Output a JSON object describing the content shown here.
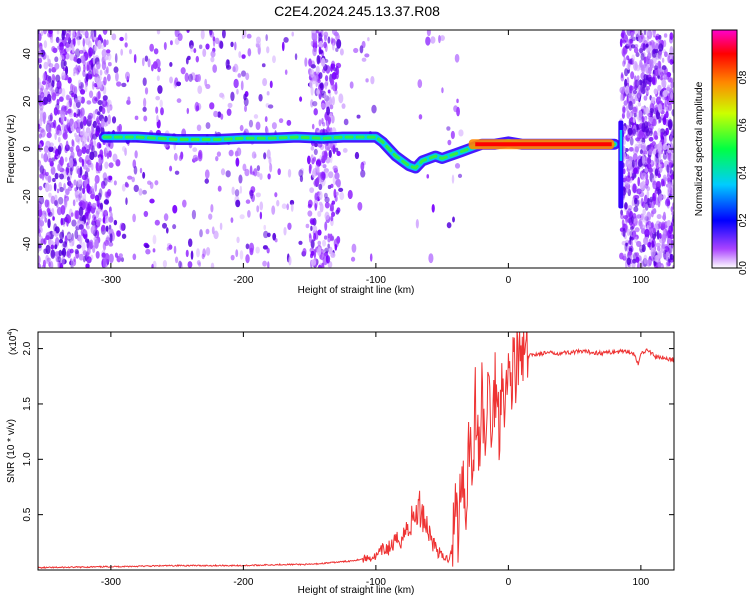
{
  "figure": {
    "title": "C2E4.2024.245.13.37.R08"
  },
  "chart_data": [
    {
      "type": "heatmap",
      "name": "spectrogram",
      "xlabel": "Height of straight line (km)",
      "ylabel": "Frequency (Hz)",
      "xlim": [
        -355,
        125
      ],
      "ylim": [
        -50,
        50
      ],
      "x_ticks": [
        -300,
        -200,
        -100,
        0,
        100
      ],
      "y_ticks": [
        -40,
        -20,
        0,
        20,
        40
      ],
      "x_tick_labels": [
        "-300",
        "-200",
        "-100",
        "0",
        "100"
      ],
      "y_tick_labels": [
        "-40",
        "-20",
        "0",
        "20",
        "40"
      ],
      "value_range": [
        0,
        1
      ],
      "ridge": {
        "x": [
          -305,
          -280,
          -250,
          -220,
          -200,
          -180,
          -160,
          -140,
          -125,
          -110,
          -100,
          -95,
          -90,
          -85,
          -80,
          -75,
          -70,
          -65,
          -60,
          -55,
          -50,
          -45,
          -40,
          -35,
          -30,
          -25,
          -20,
          -10,
          0,
          10,
          20,
          40,
          60,
          80
        ],
        "y": [
          5,
          5,
          4,
          4,
          4.5,
          4.5,
          5,
          4.5,
          5,
          5,
          5,
          3,
          0,
          -3,
          -5,
          -7,
          -8,
          -5,
          -4,
          -3,
          -4,
          -3,
          -2,
          -1,
          0,
          1,
          2,
          2,
          3,
          2,
          2,
          2,
          2,
          2
        ]
      },
      "colorbar": {
        "label": "Normalized spectral amplitude",
        "ticks": [
          0.0,
          0.2,
          0.4,
          0.6,
          0.8
        ],
        "tick_labels": [
          "0.0",
          "0.2",
          "0.4",
          "0.6",
          "0.8"
        ],
        "colors": [
          "#ffffff",
          "#8800ff",
          "#0000ff",
          "#00ffff",
          "#00ff00",
          "#ffff00",
          "#ff8800",
          "#ff0000",
          "#ff00ff"
        ]
      }
    },
    {
      "type": "line",
      "name": "snr",
      "xlabel": "Height of straight line (km)",
      "ylabel": "SNR (10 * v/v)",
      "y_multiplier_base": "(x10",
      "y_multiplier_exp": "4",
      "y_multiplier_close": ")",
      "xlim": [
        -355,
        125
      ],
      "ylim": [
        0,
        2.15
      ],
      "x_ticks": [
        -300,
        -200,
        -100,
        0,
        100
      ],
      "y_ticks": [
        0.5,
        1.0,
        1.5,
        2.0
      ],
      "x_tick_labels": [
        "-300",
        "-200",
        "-100",
        "0",
        "100"
      ],
      "y_tick_labels": [
        "0.5",
        "1.0",
        "1.5",
        "2.0"
      ],
      "line_color": "#ee3333",
      "series": [
        {
          "x": [
            -355,
            -300,
            -250,
            -200,
            -170,
            -150,
            -130,
            -120,
            -110,
            -100,
            -95,
            -90,
            -85,
            -80,
            -75,
            -70,
            -67,
            -64,
            -60,
            -55,
            -50,
            -45,
            -42,
            -40,
            -38,
            -35,
            -32,
            -30,
            -27,
            -25,
            -22,
            -20,
            -17,
            -15,
            -12,
            -10,
            -7,
            -5,
            -2,
            0,
            3,
            5,
            8,
            10,
            15,
            20,
            30,
            40,
            50,
            60,
            70,
            80,
            90,
            95,
            98,
            100,
            105,
            110,
            115,
            120,
            125
          ],
          "y": [
            0.02,
            0.03,
            0.04,
            0.04,
            0.05,
            0.05,
            0.07,
            0.08,
            0.1,
            0.12,
            0.18,
            0.2,
            0.25,
            0.3,
            0.4,
            0.5,
            0.55,
            0.5,
            0.35,
            0.2,
            0.12,
            0.1,
            0.25,
            0.6,
            0.35,
            1.0,
            0.5,
            1.25,
            0.9,
            1.5,
            1.05,
            1.55,
            1.1,
            1.7,
            1.2,
            1.75,
            1.3,
            1.8,
            1.55,
            1.75,
            1.8,
            1.85,
            1.88,
            1.9,
            1.93,
            1.95,
            1.96,
            1.96,
            1.97,
            1.97,
            1.96,
            1.97,
            1.98,
            1.95,
            1.85,
            1.95,
            2.0,
            1.93,
            1.92,
            1.91,
            1.9
          ]
        }
      ]
    }
  ]
}
